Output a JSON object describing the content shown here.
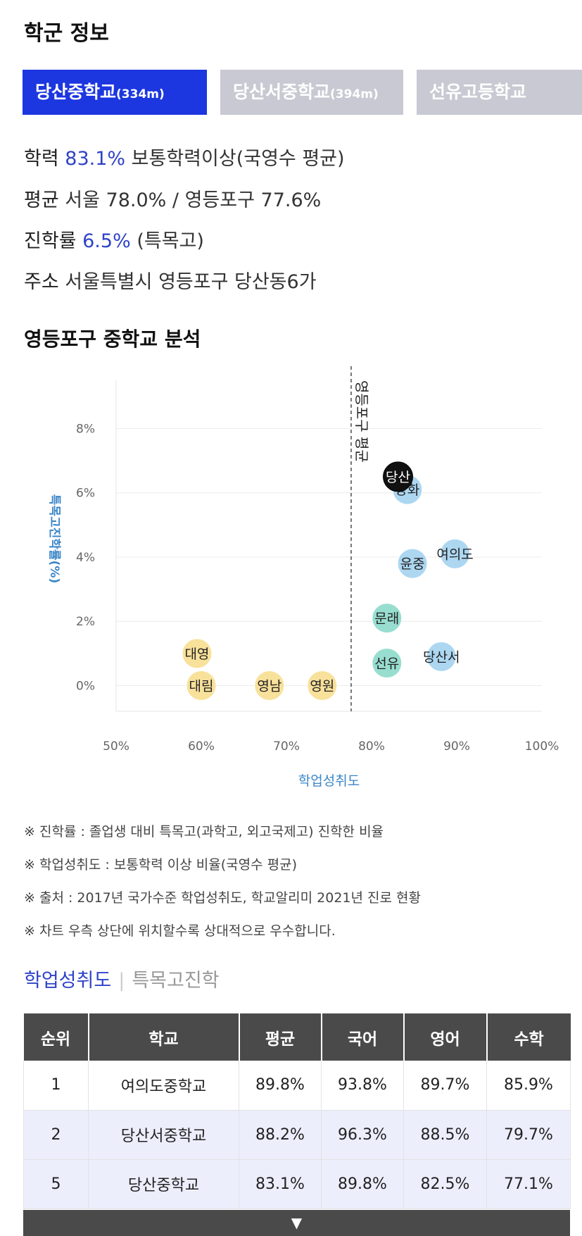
{
  "header": {
    "title": "학군 정보"
  },
  "tabs": [
    {
      "name": "당산중학교",
      "distance": "(334m)",
      "active": true
    },
    {
      "name": "당산서중학교",
      "distance": "(394m)",
      "active": false
    },
    {
      "name": "선유고등학교",
      "distance": "",
      "active": false
    }
  ],
  "info": {
    "achievement": {
      "key": "학력",
      "value": "83.1%",
      "desc": "보통학력이상(국영수 평균)"
    },
    "average": {
      "key": "평균",
      "value": "서울 78.0% / 영등포구 77.6%"
    },
    "advance": {
      "key": "진학률",
      "value": "6.5%",
      "desc": "(특목고)"
    },
    "address": {
      "key": "주소",
      "value": "서울특별시 영등포구 당산동6가"
    }
  },
  "analysis_title": "영등포구 중학교 분석",
  "chart_data": {
    "type": "scatter",
    "title": "",
    "xlabel": "학업성취도",
    "ylabel": "특목고진학률(%)",
    "xlim": [
      50,
      100
    ],
    "ylim": [
      -0.8,
      9.5
    ],
    "xticks": [
      "50%",
      "60%",
      "70%",
      "80%",
      "90%",
      "100%"
    ],
    "yticks": [
      "0%",
      "2%",
      "4%",
      "6%",
      "8%"
    ],
    "xtick_values": [
      50,
      60,
      70,
      80,
      90,
      100
    ],
    "ytick_values": [
      0,
      2,
      4,
      6,
      8
    ],
    "grid": true,
    "reference_line": {
      "x": 77.6,
      "label": "영등포구 평균"
    },
    "points": [
      {
        "label": "대영",
        "x": 59.5,
        "y": 1.0,
        "group": "yellow"
      },
      {
        "label": "대림",
        "x": 60.0,
        "y": 0.0,
        "group": "yellow"
      },
      {
        "label": "영남",
        "x": 68.0,
        "y": 0.0,
        "group": "yellow"
      },
      {
        "label": "영원",
        "x": 74.2,
        "y": 0.0,
        "group": "yellow"
      },
      {
        "label": "문래",
        "x": 81.8,
        "y": 2.1,
        "group": "green"
      },
      {
        "label": "선유",
        "x": 81.8,
        "y": 0.7,
        "group": "green"
      },
      {
        "label": "양화",
        "x": 84.2,
        "y": 6.1,
        "group": "blue"
      },
      {
        "label": "당산",
        "x": 83.1,
        "y": 6.5,
        "group": "black"
      },
      {
        "label": "윤중",
        "x": 84.8,
        "y": 3.8,
        "group": "blue"
      },
      {
        "label": "여의도",
        "x": 89.8,
        "y": 4.1,
        "group": "blue"
      },
      {
        "label": "당산서",
        "x": 88.2,
        "y": 0.9,
        "group": "blue"
      }
    ],
    "colors": {
      "yellow": "#f7dc8a",
      "green": "#86d8c8",
      "blue": "#9fd0ee",
      "black": "#111111"
    }
  },
  "notes": [
    "※ 진학률 : 졸업생 대비 특목고(과학고, 외고국제고) 진학한 비율",
    "※ 학업성취도 : 보통학력 이상 비율(국영수 평균)",
    "※ 출처 : 2017년 국가수준 학업성취도, 학교알리미 2021년 진로 현황",
    "※ 차트 우측 상단에 위치할수록 상대적으로 우수합니다."
  ],
  "subtabs": {
    "active": "학업성취도",
    "inactive": "특목고진학"
  },
  "table": {
    "headers": [
      "순위",
      "학교",
      "평균",
      "국어",
      "영어",
      "수학"
    ],
    "rows": [
      [
        "1",
        "여의도중학교",
        "89.8%",
        "93.8%",
        "89.7%",
        "85.9%"
      ],
      [
        "2",
        "당산서중학교",
        "88.2%",
        "96.3%",
        "88.5%",
        "79.7%"
      ],
      [
        "5",
        "당산중학교",
        "83.1%",
        "89.8%",
        "82.5%",
        "77.1%"
      ]
    ],
    "more_icon": "caret-down-icon"
  }
}
